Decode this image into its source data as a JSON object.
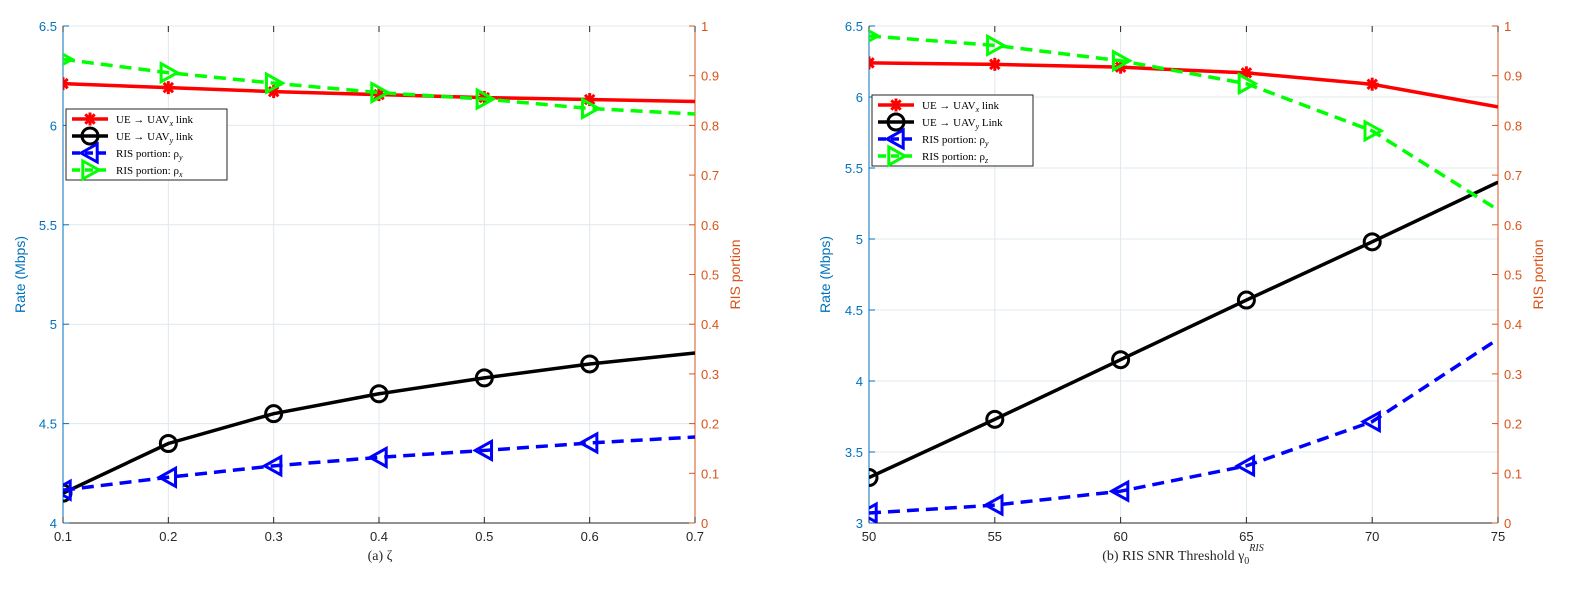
{
  "colors": {
    "left_axis": "#0072BD",
    "right_axis": "#D95319",
    "grid": "#dfe8ee",
    "red": "#ff0000",
    "black": "#000000",
    "blue": "#0000ff",
    "green": "#00ff00"
  },
  "chart_data": [
    {
      "type": "line",
      "xlabel": "(a) ζ",
      "ylabel": "Rate (Mbps)",
      "y2label": "RIS portion",
      "xlim": [
        0.1,
        0.7
      ],
      "ylim": [
        4,
        6.5
      ],
      "y2lim": [
        0,
        1
      ],
      "xticks": [
        "0.1",
        "0.2",
        "0.3",
        "0.4",
        "0.5",
        "0.6",
        "0.7"
      ],
      "yticks": [
        "4",
        "4.5",
        "5",
        "5.5",
        "6",
        "6.5"
      ],
      "y2ticks": [
        "0",
        "0.1",
        "0.2",
        "0.3",
        "0.4",
        "0.5",
        "0.6",
        "0.7",
        "0.8",
        "0.9",
        "1"
      ],
      "grid": true,
      "legend_position": "upper-left",
      "series": [
        {
          "name": "UE → UAV_x link",
          "legend_main": "UE → UAV",
          "legend_sub": "x",
          "legend_tail": " link",
          "axis": "left",
          "color": "#ff0000",
          "dash": "solid",
          "marker": "asterisk",
          "x": [
            0.1,
            0.2,
            0.3,
            0.4,
            0.5,
            0.6,
            0.7
          ],
          "values": [
            6.21,
            6.19,
            6.17,
            6.155,
            6.14,
            6.13,
            6.12
          ]
        },
        {
          "name": "UE → UAV_y link",
          "legend_main": "UE → UAV",
          "legend_sub": "y",
          "legend_tail": " link",
          "axis": "left",
          "color": "#000000",
          "dash": "solid",
          "marker": "circle",
          "x": [
            0.1,
            0.2,
            0.3,
            0.4,
            0.5,
            0.6,
            0.7
          ],
          "values": [
            4.15,
            4.4,
            4.55,
            4.65,
            4.73,
            4.8,
            4.855
          ]
        },
        {
          "name": "RIS portion: ρ_y",
          "legend_main": "RIS portion: ρ",
          "legend_sub": "y",
          "legend_tail": "",
          "axis": "right",
          "color": "#0000ff",
          "dash": "dashed",
          "marker": "triangle-left",
          "x": [
            0.1,
            0.2,
            0.3,
            0.4,
            0.5,
            0.6,
            0.7
          ],
          "values": [
            0.066,
            0.092,
            0.115,
            0.132,
            0.146,
            0.161,
            0.173
          ]
        },
        {
          "name": "RIS portion: ρ_x",
          "legend_main": "RIS portion: ρ",
          "legend_sub": "x",
          "legend_tail": "",
          "axis": "right",
          "color": "#00ff00",
          "dash": "dashed",
          "marker": "triangle-right",
          "x": [
            0.1,
            0.2,
            0.3,
            0.4,
            0.5,
            0.6,
            0.7
          ],
          "values": [
            0.933,
            0.906,
            0.885,
            0.866,
            0.853,
            0.834,
            0.823
          ]
        }
      ]
    },
    {
      "type": "line",
      "xlabel": "(b)  RIS SNR Threshold γ",
      "xlabel_sub": "0",
      "xlabel_sup": "RIS",
      "ylabel": "Rate (Mbps)",
      "y2label": "RIS portion",
      "xlim": [
        50,
        75
      ],
      "ylim": [
        3,
        6.5
      ],
      "y2lim": [
        0,
        1
      ],
      "xticks": [
        "50",
        "55",
        "60",
        "65",
        "70",
        "75"
      ],
      "yticks": [
        "3",
        "3.5",
        "4",
        "4.5",
        "5",
        "5.5",
        "6",
        "6.5"
      ],
      "y2ticks": [
        "0",
        "0.1",
        "0.2",
        "0.3",
        "0.4",
        "0.5",
        "0.6",
        "0.7",
        "0.8",
        "0.9",
        "1"
      ],
      "grid": true,
      "legend_position": "upper-left",
      "series": [
        {
          "name": "UE → UAV_x link",
          "legend_main": "UE → UAV",
          "legend_sub": "x",
          "legend_tail": " link",
          "axis": "left",
          "color": "#ff0000",
          "dash": "solid",
          "marker": "asterisk",
          "x": [
            50,
            55,
            60,
            65,
            70,
            75
          ],
          "values": [
            6.24,
            6.23,
            6.21,
            6.17,
            6.09,
            5.93
          ]
        },
        {
          "name": "UE → UAV_y Link",
          "legend_main": "UE → UAV",
          "legend_sub": "y",
          "legend_tail": " Link",
          "axis": "left",
          "color": "#000000",
          "dash": "solid",
          "marker": "circle",
          "x": [
            50,
            55,
            60,
            65,
            70,
            75
          ],
          "values": [
            3.32,
            3.73,
            4.15,
            4.57,
            4.98,
            5.4
          ]
        },
        {
          "name": "RIS portion: ρ_y",
          "legend_main": "RIS portion: ρ",
          "legend_sub": "y",
          "legend_tail": "",
          "axis": "right",
          "color": "#0000ff",
          "dash": "dashed",
          "marker": "triangle-left",
          "x": [
            50,
            55,
            60,
            65,
            70,
            75
          ],
          "values": [
            0.02,
            0.036,
            0.064,
            0.115,
            0.204,
            0.37
          ]
        },
        {
          "name": "RIS portion: ρ_z",
          "legend_main": "RIS portion: ρ",
          "legend_sub": "z",
          "legend_tail": "",
          "axis": "right",
          "color": "#00ff00",
          "dash": "dashed",
          "marker": "triangle-right",
          "x": [
            50,
            55,
            60,
            65,
            70,
            75
          ],
          "values": [
            0.98,
            0.961,
            0.93,
            0.884,
            0.789,
            0.63
          ]
        }
      ]
    }
  ]
}
